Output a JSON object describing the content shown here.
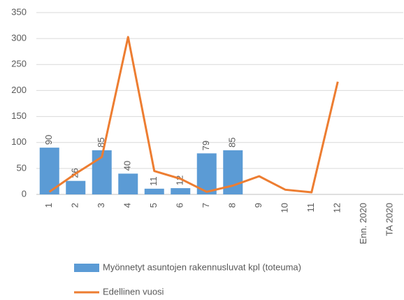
{
  "chart_data": {
    "type": "combo",
    "categories": [
      "1",
      "2",
      "3",
      "4",
      "5",
      "6",
      "7",
      "8",
      "9",
      "10",
      "11",
      "12",
      "Enn. 2020",
      "TA 2020"
    ],
    "series": [
      {
        "name": "Myönnetyt asuntojen rakennusluvat kpl (toteuma)",
        "type": "bar",
        "color": "#5b9bd5",
        "values": [
          90,
          26,
          85,
          40,
          11,
          12,
          79,
          85,
          null,
          null,
          null,
          null,
          null,
          null
        ]
      },
      {
        "name": "Edellinen vuosi",
        "type": "line",
        "color": "#ed7d31",
        "values": [
          5,
          40,
          72,
          303,
          45,
          30,
          5,
          17,
          35,
          9,
          4,
          217,
          null,
          null
        ]
      }
    ],
    "ylim": [
      0,
      350
    ],
    "yticks": [
      0,
      50,
      100,
      150,
      200,
      250,
      300,
      350
    ],
    "grid": true
  }
}
